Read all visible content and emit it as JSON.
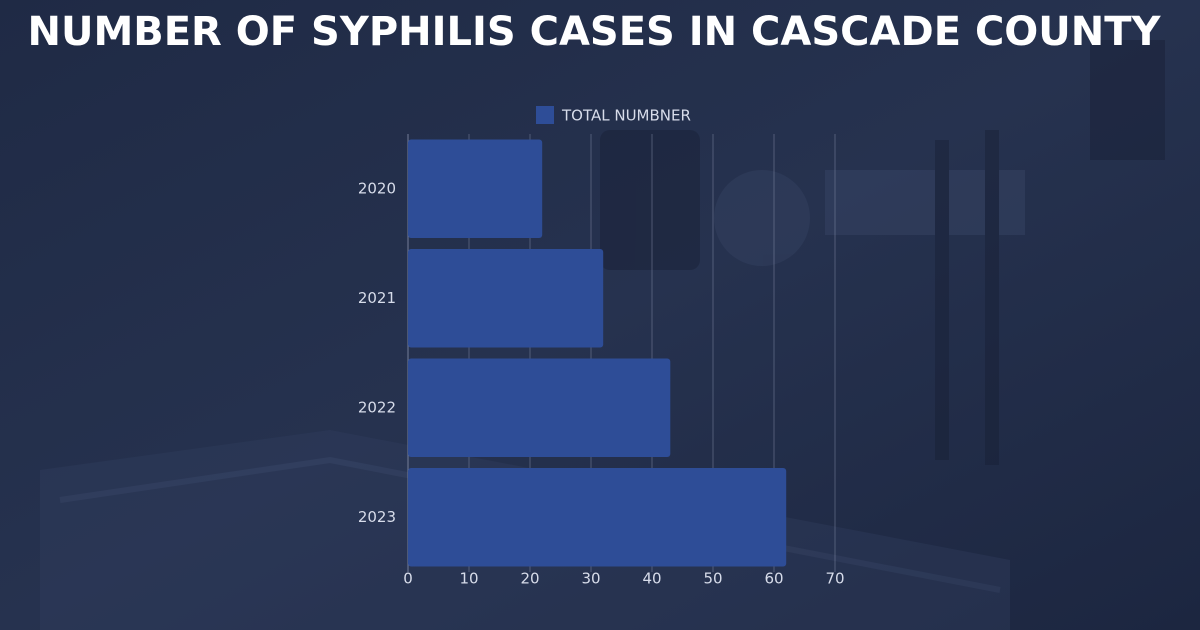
{
  "chart_data": {
    "type": "bar",
    "orientation": "horizontal",
    "title": "NUMBER OF SYPHILIS CASES IN CASCADE COUNTY",
    "categories": [
      "2020",
      "2021",
      "2022",
      "2023"
    ],
    "series": [
      {
        "name": "TOTAL NUMBNER",
        "color": "#2e4d97",
        "values": [
          22,
          32,
          43,
          62
        ]
      }
    ],
    "xlim": [
      0,
      70
    ],
    "xticks": [
      0,
      10,
      20,
      30,
      40,
      50,
      60,
      70
    ],
    "grid": true
  }
}
